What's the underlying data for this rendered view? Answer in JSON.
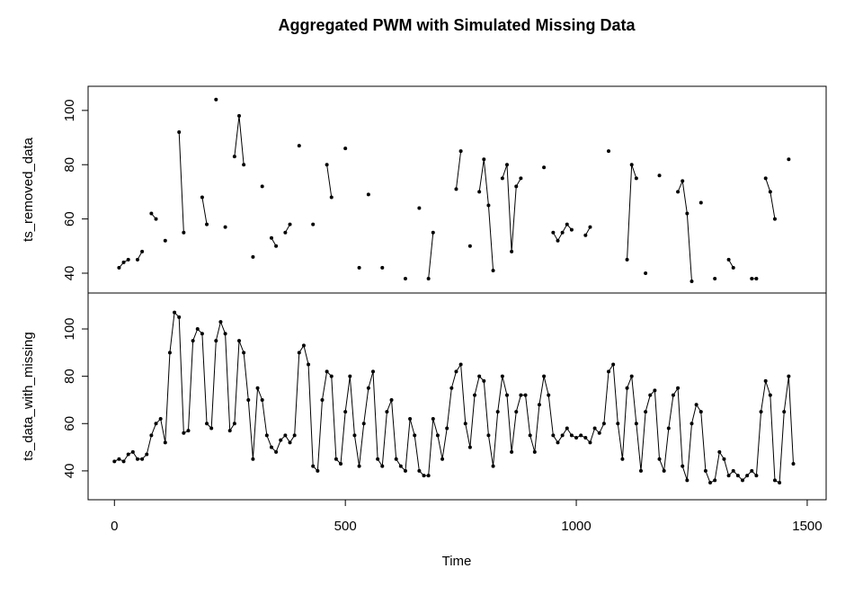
{
  "title": "Aggregated PWM with Simulated Missing Data",
  "chart_data": [
    {
      "type": "line",
      "ylabel": "ts_removed_data",
      "x": [
        0,
        10,
        20,
        30,
        40,
        50,
        60,
        70,
        80,
        90,
        100,
        110,
        120,
        130,
        140,
        150,
        160,
        170,
        180,
        190,
        200,
        210,
        220,
        230,
        240,
        250,
        260,
        270,
        280,
        290,
        300,
        310,
        320,
        330,
        340,
        350,
        360,
        370,
        380,
        390,
        400,
        410,
        420,
        430,
        440,
        450,
        460,
        470,
        480,
        490,
        500,
        510,
        520,
        530,
        540,
        550,
        560,
        570,
        580,
        590,
        600,
        610,
        620,
        630,
        640,
        650,
        660,
        670,
        680,
        690,
        700,
        710,
        720,
        730,
        740,
        750,
        760,
        770,
        780,
        790,
        800,
        810,
        820,
        830,
        840,
        850,
        860,
        870,
        880,
        890,
        900,
        910,
        920,
        930,
        940,
        950,
        960,
        970,
        980,
        990,
        1000,
        1010,
        1020,
        1030,
        1040,
        1050,
        1060,
        1070,
        1080,
        1090,
        1100,
        1110,
        1120,
        1130,
        1140,
        1150,
        1160,
        1170,
        1180,
        1190,
        1200,
        1210,
        1220,
        1230,
        1240,
        1250,
        1260,
        1270,
        1280,
        1290,
        1300,
        1310,
        1320,
        1330,
        1340,
        1350,
        1360,
        1370,
        1380,
        1390,
        1400,
        1410,
        1420,
        1430,
        1440,
        1450,
        1460,
        1470
      ],
      "values": [
        null,
        42,
        44,
        45,
        null,
        45,
        48,
        null,
        62,
        60,
        null,
        52,
        null,
        null,
        92,
        55,
        null,
        null,
        null,
        68,
        58,
        null,
        104,
        null,
        57,
        null,
        83,
        98,
        80,
        null,
        46,
        null,
        72,
        null,
        53,
        50,
        null,
        55,
        58,
        null,
        87,
        null,
        null,
        58,
        null,
        null,
        80,
        68,
        null,
        null,
        86,
        null,
        null,
        42,
        null,
        69,
        null,
        null,
        42,
        null,
        null,
        null,
        null,
        38,
        null,
        null,
        64,
        null,
        38,
        55,
        null,
        null,
        null,
        null,
        71,
        85,
        null,
        50,
        null,
        70,
        82,
        65,
        41,
        null,
        75,
        80,
        48,
        72,
        75,
        null,
        null,
        null,
        null,
        79,
        null,
        55,
        52,
        55,
        58,
        56,
        null,
        null,
        54,
        57,
        null,
        null,
        null,
        85,
        null,
        null,
        null,
        45,
        80,
        75,
        null,
        40,
        null,
        null,
        76,
        null,
        null,
        null,
        70,
        74,
        62,
        37,
        null,
        66,
        null,
        null,
        38,
        null,
        null,
        45,
        42,
        null,
        null,
        null,
        38,
        38,
        null,
        75,
        70,
        60,
        null,
        null,
        82,
        null
      ],
      "color": "#000000",
      "xlim": [
        -57,
        1541
      ],
      "ylim": [
        32.7,
        108.9
      ],
      "yticks": [
        40,
        60,
        80,
        100
      ]
    },
    {
      "type": "line",
      "ylabel": "ts_data_with_missing",
      "xlabel": "Time",
      "x": [
        0,
        10,
        20,
        30,
        40,
        50,
        60,
        70,
        80,
        90,
        100,
        110,
        120,
        130,
        140,
        150,
        160,
        170,
        180,
        190,
        200,
        210,
        220,
        230,
        240,
        250,
        260,
        270,
        280,
        290,
        300,
        310,
        320,
        330,
        340,
        350,
        360,
        370,
        380,
        390,
        400,
        410,
        420,
        430,
        440,
        450,
        460,
        470,
        480,
        490,
        500,
        510,
        520,
        530,
        540,
        550,
        560,
        570,
        580,
        590,
        600,
        610,
        620,
        630,
        640,
        650,
        660,
        670,
        680,
        690,
        700,
        710,
        720,
        730,
        740,
        750,
        760,
        770,
        780,
        790,
        800,
        810,
        820,
        830,
        840,
        850,
        860,
        870,
        880,
        890,
        900,
        910,
        920,
        930,
        940,
        950,
        960,
        970,
        980,
        990,
        1000,
        1010,
        1020,
        1030,
        1040,
        1050,
        1060,
        1070,
        1080,
        1090,
        1100,
        1110,
        1120,
        1130,
        1140,
        1150,
        1160,
        1170,
        1180,
        1190,
        1200,
        1210,
        1220,
        1230,
        1240,
        1250,
        1260,
        1270,
        1280,
        1290,
        1300,
        1310,
        1320,
        1330,
        1340,
        1350,
        1360,
        1370,
        1380,
        1390,
        1400,
        1410,
        1420,
        1430,
        1440,
        1450,
        1460,
        1470
      ],
      "values": [
        44,
        45,
        44,
        47,
        48,
        45,
        45,
        47,
        55,
        60,
        62,
        52,
        90,
        107,
        105,
        56,
        57,
        95,
        100,
        98,
        60,
        58,
        95,
        103,
        98,
        57,
        60,
        95,
        90,
        70,
        45,
        75,
        70,
        55,
        50,
        48,
        53,
        55,
        52,
        55,
        90,
        93,
        85,
        42,
        40,
        70,
        82,
        80,
        45,
        43,
        65,
        80,
        55,
        42,
        60,
        75,
        82,
        45,
        42,
        65,
        70,
        45,
        42,
        40,
        62,
        55,
        40,
        38,
        38,
        62,
        55,
        45,
        58,
        75,
        82,
        85,
        60,
        50,
        72,
        80,
        78,
        55,
        42,
        65,
        80,
        72,
        48,
        65,
        72,
        72,
        55,
        48,
        68,
        80,
        72,
        55,
        52,
        55,
        58,
        55,
        54,
        55,
        54,
        52,
        58,
        56,
        60,
        82,
        85,
        60,
        45,
        75,
        80,
        60,
        40,
        65,
        72,
        74,
        45,
        40,
        58,
        72,
        75,
        42,
        36,
        60,
        68,
        65,
        40,
        35,
        36,
        48,
        45,
        38,
        40,
        38,
        36,
        38,
        40,
        38,
        65,
        78,
        72,
        36,
        35,
        65,
        80,
        43
      ],
      "color": "#000000",
      "xlim": [
        -57,
        1541
      ],
      "ylim": [
        27.8,
        115.2
      ],
      "yticks": [
        40,
        60,
        80,
        100
      ],
      "xticks": [
        0,
        500,
        1000,
        1500
      ]
    }
  ]
}
